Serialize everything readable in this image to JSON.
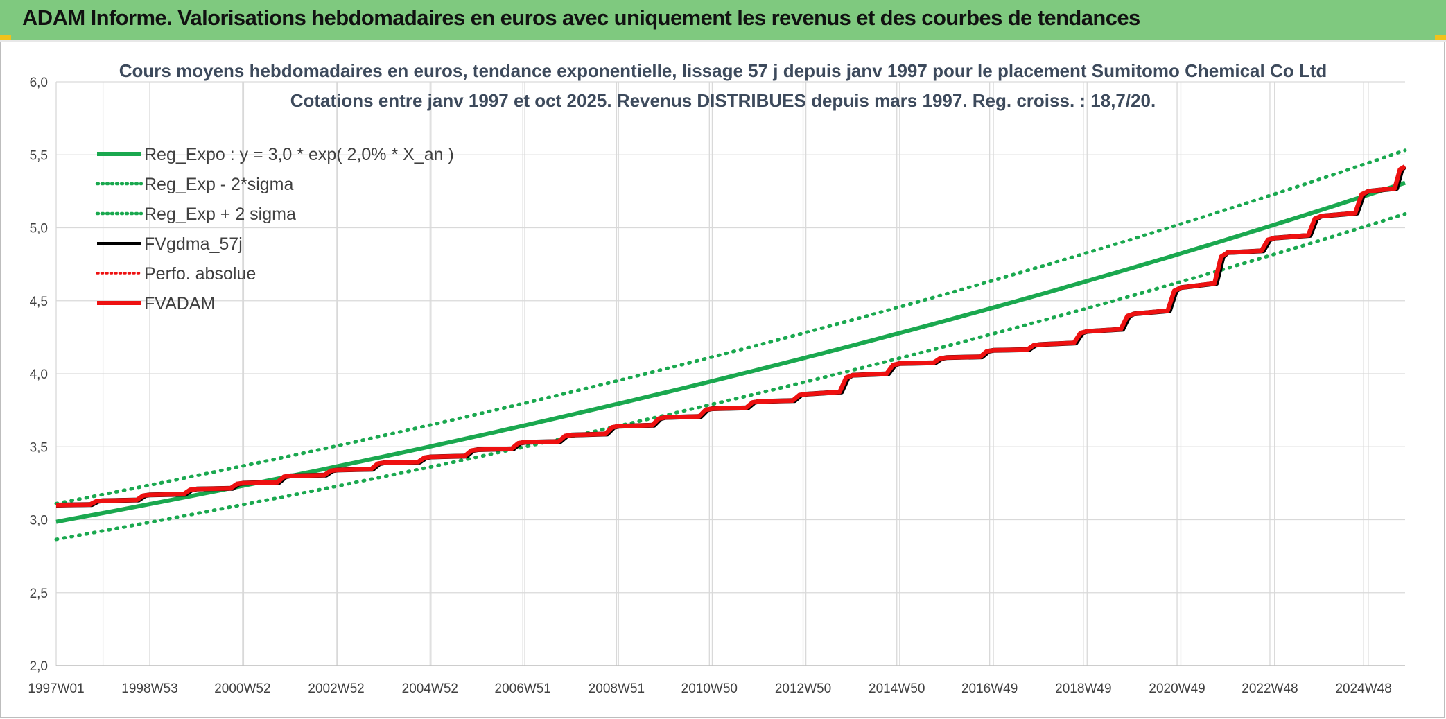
{
  "header": {
    "title": "ADAM Informe. Valorisations hebdomadaires en euros avec uniquement les revenus et des courbes de tendances"
  },
  "colors": {
    "banner": "#7fc97f",
    "trend": "#1aa84f",
    "fvgdma": "#000000",
    "fvadam": "#ee1111"
  },
  "chart_data": {
    "type": "line",
    "title": "Cours moyens hebdomadaires en euros, tendance exponentielle, lissage 57 j depuis janv 1997 pour le placement Sumitomo Chemical Co Ltd",
    "subtitle": "Cotations entre janv 1997 et oct 2025. Revenus DISTRIBUES depuis mars 1997. Reg. croiss. : 18,7/20.",
    "x_range": [
      "1997W01",
      "2025W42"
    ],
    "x_ticks": [
      "1997W01",
      "1998W53",
      "2000W52",
      "2002W52",
      "2004W52",
      "2006W51",
      "2008W51",
      "2010W50",
      "2012W50",
      "2014W50",
      "2016W49",
      "2018W49",
      "2020W49",
      "2022W48",
      "2024W48"
    ],
    "ylim": [
      2.0,
      6.0
    ],
    "y_ticks": [
      "2,0",
      "2,5",
      "3,0",
      "3,5",
      "4,0",
      "4,5",
      "5,0",
      "5,5",
      "6,0"
    ],
    "grid": true,
    "legend_position": "top-left",
    "series": [
      {
        "name": "Reg_Expo : y = 3,0 * exp( 2,0% *  X_an )",
        "style": "solid-thick-green",
        "x": [
          "1997W01",
          "2025W42"
        ],
        "formula": {
          "a": 2.985,
          "rate": 0.02
        }
      },
      {
        "name": "Reg_Exp - 2*sigma",
        "style": "dotted-green",
        "x": [
          "1997W01",
          "2025W42"
        ],
        "formula": {
          "a": 2.865,
          "rate": 0.02
        }
      },
      {
        "name": "Reg_Exp + 2 sigma",
        "style": "dotted-green",
        "x": [
          "1997W01",
          "2025W42"
        ],
        "formula": {
          "a": 3.11,
          "rate": 0.02
        }
      },
      {
        "name": "FVgdma_57j",
        "style": "solid-black"
      },
      {
        "name": "Perfo. absolue",
        "style": "dotted-red"
      },
      {
        "name": "FVADAM",
        "style": "solid-thick-red",
        "x": [
          "1997W01",
          "1998W01",
          "1999W01",
          "2000W01",
          "2001W01",
          "2002W01",
          "2003W01",
          "2004W01",
          "2005W01",
          "2006W01",
          "2007W01",
          "2008W01",
          "2009W01",
          "2010W01",
          "2011W01",
          "2012W01",
          "2013W01",
          "2014W01",
          "2015W01",
          "2016W01",
          "2017W01",
          "2018W01",
          "2019W01",
          "2020W01",
          "2021W01",
          "2022W01",
          "2023W01",
          "2024W01",
          "2025W01",
          "2025W42"
        ],
        "values": [
          3.1,
          3.13,
          3.17,
          3.21,
          3.25,
          3.3,
          3.34,
          3.39,
          3.43,
          3.48,
          3.53,
          3.58,
          3.64,
          3.7,
          3.76,
          3.81,
          3.86,
          3.99,
          4.07,
          4.11,
          4.16,
          4.2,
          4.29,
          4.41,
          4.59,
          4.83,
          4.93,
          5.08,
          5.25,
          5.42
        ]
      }
    ]
  }
}
